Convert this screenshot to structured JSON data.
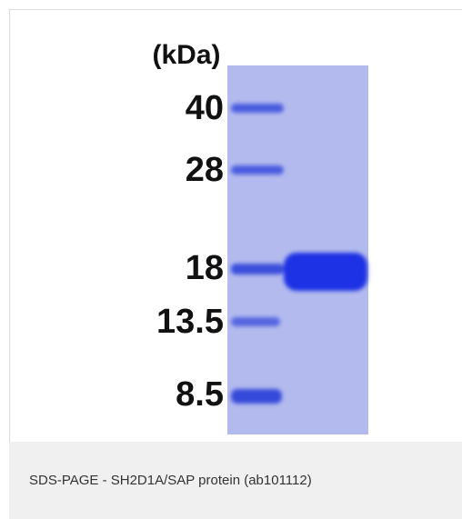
{
  "figure": {
    "unit_label": "(kDa)",
    "markers": [
      "40",
      "28",
      "18",
      "13.5",
      "8.5"
    ]
  },
  "caption": "SDS-PAGE - SH2D1A/SAP protein (ab101112)"
}
